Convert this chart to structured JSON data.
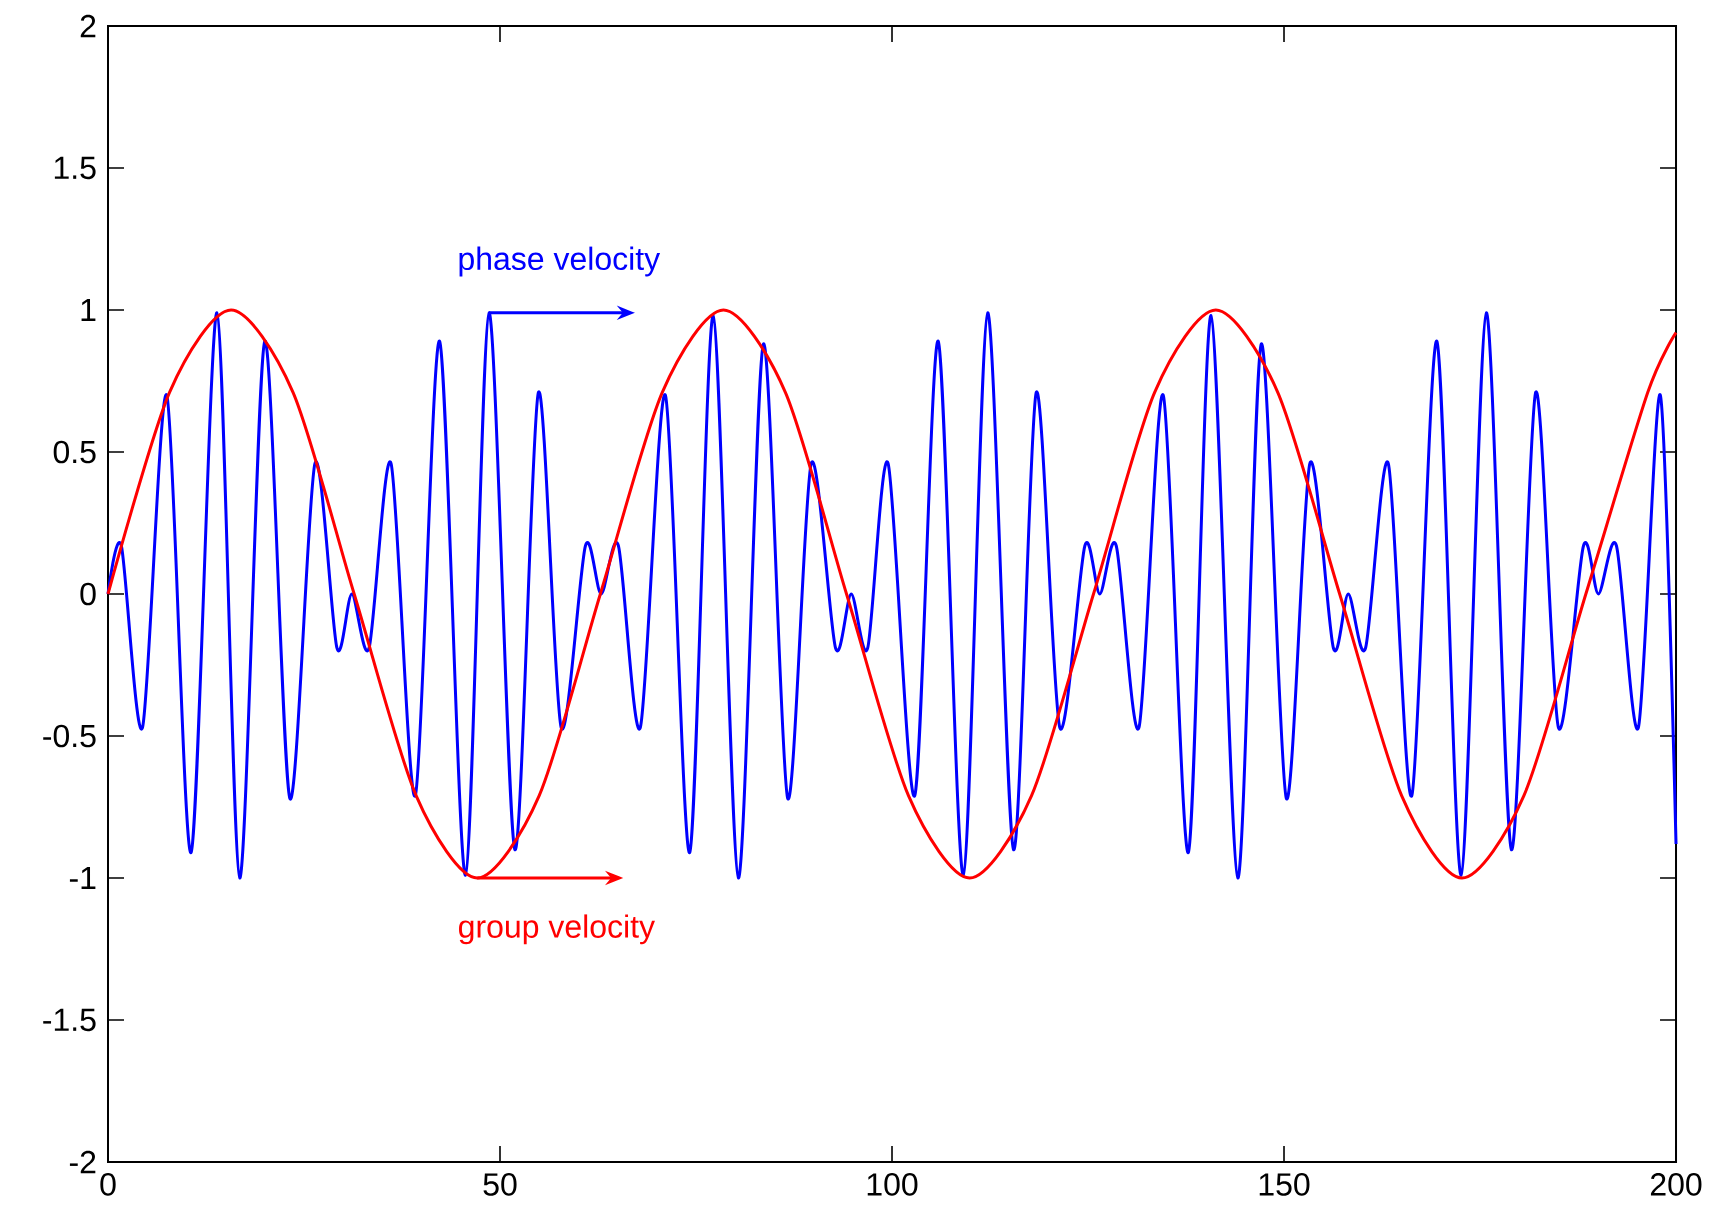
{
  "chart_data": {
    "type": "line",
    "xlim": [
      0,
      200
    ],
    "ylim": [
      -2,
      2
    ],
    "xticks": [
      0,
      50,
      100,
      150,
      200
    ],
    "yticks": [
      -2,
      -1.5,
      -1,
      -0.5,
      0,
      0.5,
      1,
      1.5,
      2
    ],
    "grid": false,
    "series": [
      {
        "color": "#0000ff",
        "x": [
          0,
          1.7,
          4.4,
          7.5,
          10.6,
          13.9,
          16.8,
          20.0,
          23.2,
          26.4,
          29.2,
          31.1,
          33.3,
          36.1,
          39.2,
          42.3,
          45.6,
          48.6,
          51.9,
          54.9,
          57.8,
          60.9,
          62.9,
          65.1,
          67.9,
          71.1,
          74.2,
          77.2,
          80.4,
          83.6,
          86.7,
          89.7,
          92.8,
          94.8,
          96.9,
          99.5,
          102.9,
          105.9,
          109.1,
          112.2,
          115.5,
          118.4,
          121.4,
          124.6,
          126.5,
          128.6,
          131.5,
          134.6,
          137.8,
          140.7,
          144.1,
          147.1,
          150.3,
          153.3,
          156.3,
          158.2,
          160.4,
          163.3,
          166.3,
          169.5,
          172.6,
          175.8,
          179.0,
          182.1,
          185.0,
          188.2,
          190.1,
          192.4,
          195.2,
          198.0,
          200
        ],
        "values": [
          0,
          0.17,
          -0.47,
          0.7,
          -0.91,
          0.99,
          -1.0,
          0.89,
          -0.72,
          0.46,
          -0.19,
          0,
          -0.19,
          0.46,
          -0.71,
          0.89,
          -0.99,
          0.99,
          -0.9,
          0.71,
          -0.47,
          0.17,
          0,
          0.17,
          -0.47,
          0.7,
          -0.91,
          0.98,
          -1.0,
          0.88,
          -0.72,
          0.46,
          -0.19,
          0,
          -0.19,
          0.46,
          -0.71,
          0.89,
          -0.99,
          0.99,
          -0.9,
          0.71,
          -0.47,
          0.17,
          0,
          0.17,
          -0.47,
          0.7,
          -0.91,
          0.98,
          -1.0,
          0.88,
          -0.72,
          0.46,
          -0.19,
          0,
          -0.19,
          0.46,
          -0.71,
          0.89,
          -0.99,
          0.99,
          -0.9,
          0.71,
          -0.47,
          0.17,
          0,
          0.17,
          -0.47,
          0.7,
          -0.88
        ]
      },
      {
        "color": "#ff0000",
        "x": [
          0,
          7.85,
          15.7,
          23.6,
          31.4,
          39.3,
          47.1,
          55.0,
          62.8,
          70.7,
          78.5,
          86.4,
          94.2,
          102.1,
          109.9,
          117.8,
          125.7,
          133.5,
          141.3,
          149.2,
          157.1,
          165.0,
          172.7,
          180.6,
          188.5,
          196.4,
          200
        ],
        "values": [
          0,
          0.71,
          1,
          0.71,
          0,
          -0.71,
          -1,
          -0.71,
          0,
          0.71,
          1,
          0.71,
          0,
          -0.71,
          -1,
          -0.71,
          0,
          0.71,
          1,
          0.71,
          0,
          -0.71,
          -1,
          -0.71,
          0,
          0.71,
          0.92
        ]
      }
    ],
    "annotations": [
      {
        "text": "phase velocity",
        "x": 48.6,
        "y": 0.99
      },
      {
        "text": "group velocity",
        "x": 47.1,
        "y": -1
      }
    ]
  }
}
